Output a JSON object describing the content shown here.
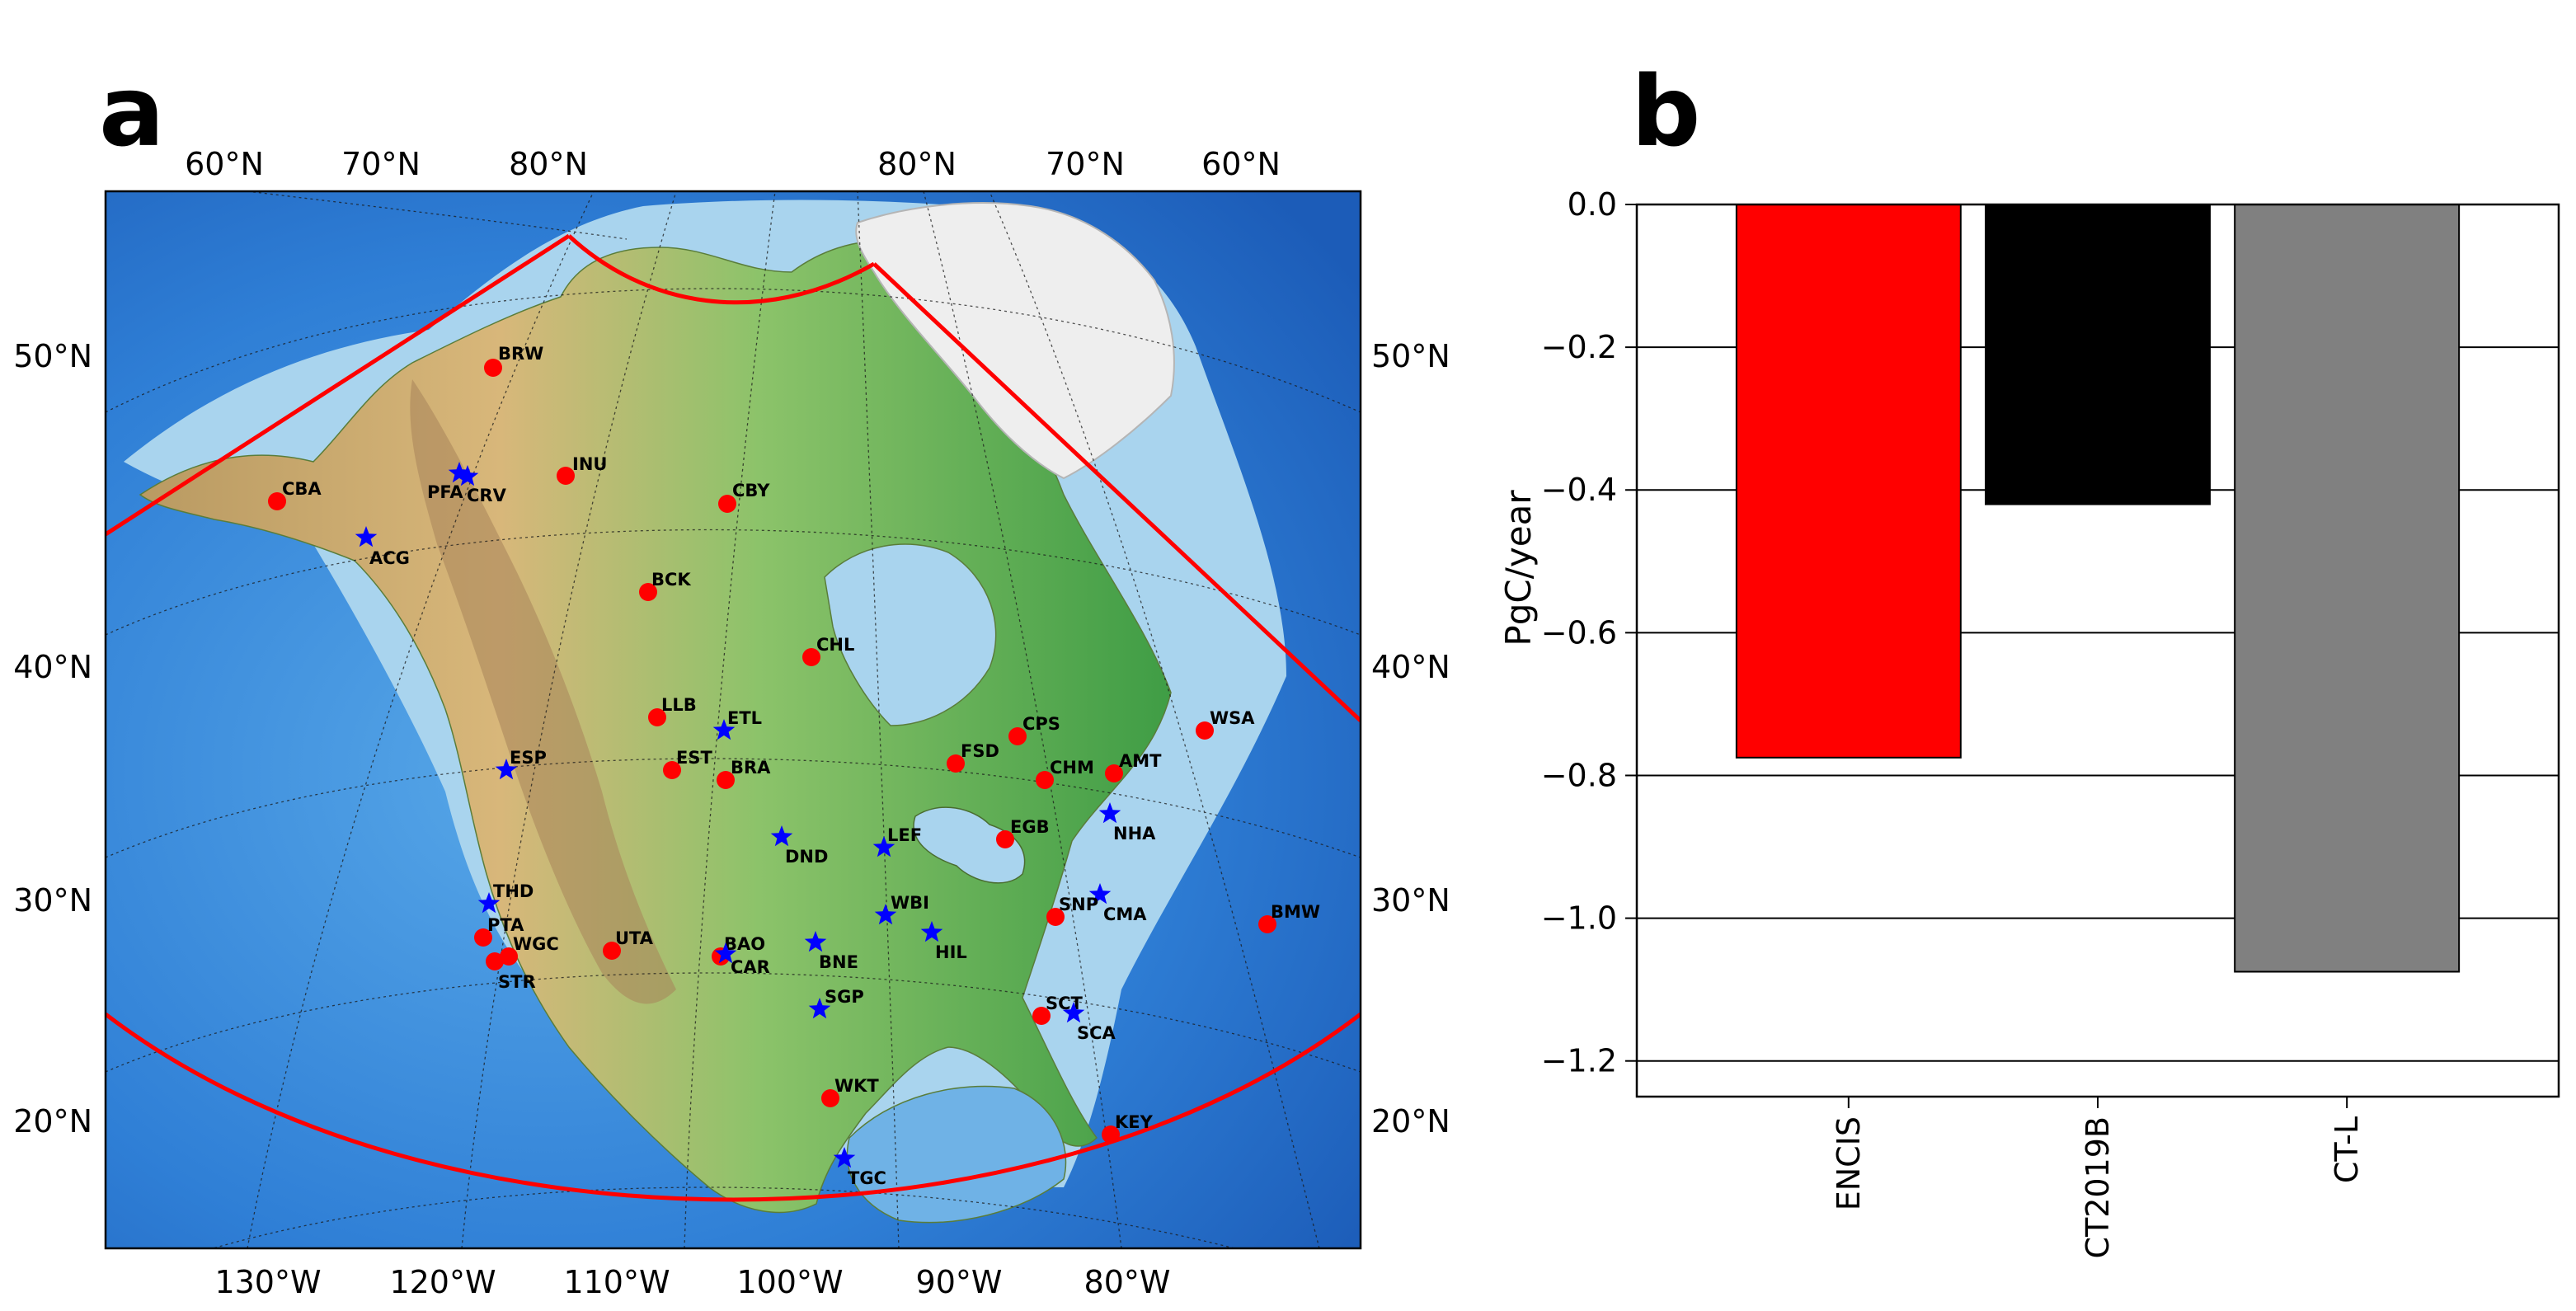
{
  "panel_a": {
    "letter": "a",
    "lat_labels_left": [
      {
        "text": "50°N",
        "lat": 50
      },
      {
        "text": "40°N",
        "lat": 40
      },
      {
        "text": "30°N",
        "lat": 30
      },
      {
        "text": "20°N",
        "lat": 20
      }
    ],
    "lat_labels_right": [
      {
        "text": "50°N",
        "lat": 50
      },
      {
        "text": "40°N",
        "lat": 40
      },
      {
        "text": "30°N",
        "lat": 30
      },
      {
        "text": "20°N",
        "lat": 20
      }
    ],
    "top_labels": [
      "60°N",
      "70°N",
      "80°N",
      "80°N",
      "70°N",
      "60°N"
    ],
    "lon_labels_bottom": [
      {
        "text": "130°W",
        "lon": -130
      },
      {
        "text": "120°W",
        "lon": -120
      },
      {
        "text": "110°W",
        "lon": -110
      },
      {
        "text": "100°W",
        "lon": -100
      },
      {
        "text": "90°W",
        "lon": -90
      },
      {
        "text": "80°W",
        "lon": -80
      }
    ],
    "marker_colors": {
      "tower": "#ff0000",
      "aircraft": "#0000ff"
    },
    "domain_color": "#ff0000",
    "sites": [
      {
        "code": "BRW",
        "type": "tower"
      },
      {
        "code": "INU",
        "type": "tower"
      },
      {
        "code": "CBY",
        "type": "tower"
      },
      {
        "code": "CBA",
        "type": "tower"
      },
      {
        "code": "PFA",
        "type": "aircraft"
      },
      {
        "code": "CRV",
        "type": "aircraft"
      },
      {
        "code": "ACG",
        "type": "aircraft"
      },
      {
        "code": "BCK",
        "type": "tower"
      },
      {
        "code": "CHL",
        "type": "tower"
      },
      {
        "code": "LLB",
        "type": "tower"
      },
      {
        "code": "ETL",
        "type": "aircraft"
      },
      {
        "code": "ESP",
        "type": "aircraft"
      },
      {
        "code": "EST",
        "type": "tower"
      },
      {
        "code": "BRA",
        "type": "tower"
      },
      {
        "code": "CPS",
        "type": "tower"
      },
      {
        "code": "FSD",
        "type": "tower"
      },
      {
        "code": "CHM",
        "type": "tower"
      },
      {
        "code": "AMT",
        "type": "tower"
      },
      {
        "code": "WSA",
        "type": "tower"
      },
      {
        "code": "NHA",
        "type": "aircraft"
      },
      {
        "code": "DND",
        "type": "aircraft"
      },
      {
        "code": "LEF",
        "type": "aircraft"
      },
      {
        "code": "EGB",
        "type": "tower"
      },
      {
        "code": "THD",
        "type": "aircraft"
      },
      {
        "code": "CMA",
        "type": "aircraft"
      },
      {
        "code": "SNP",
        "type": "tower"
      },
      {
        "code": "BMW",
        "type": "tower"
      },
      {
        "code": "WBI",
        "type": "aircraft"
      },
      {
        "code": "HIL",
        "type": "aircraft"
      },
      {
        "code": "PTA",
        "type": "tower"
      },
      {
        "code": "WGC",
        "type": "tower"
      },
      {
        "code": "STR",
        "type": "tower"
      },
      {
        "code": "UTA",
        "type": "tower"
      },
      {
        "code": "BAO",
        "type": "tower"
      },
      {
        "code": "CAR",
        "type": "aircraft"
      },
      {
        "code": "BNE",
        "type": "aircraft"
      },
      {
        "code": "SGP",
        "type": "aircraft"
      },
      {
        "code": "SCT",
        "type": "tower"
      },
      {
        "code": "SCA",
        "type": "aircraft"
      },
      {
        "code": "WKT",
        "type": "tower"
      },
      {
        "code": "KEY",
        "type": "tower"
      },
      {
        "code": "TGC",
        "type": "aircraft"
      }
    ]
  },
  "panel_b": {
    "letter": "b",
    "chart_data": {
      "type": "bar",
      "categories": [
        "ENCIS",
        "CT2019B",
        "CT-L"
      ],
      "values": [
        -0.775,
        -0.42,
        -1.075
      ],
      "colors": [
        "#ff0000",
        "#000000",
        "#808080"
      ],
      "title": "",
      "xlabel": "",
      "ylabel": "PgC/year",
      "ylim": [
        -1.25,
        0.0
      ],
      "yticks": [
        0.0,
        -0.2,
        -0.4,
        -0.6,
        -0.8,
        -1.0,
        -1.2
      ],
      "ytick_labels": [
        "0.0",
        "−0.2",
        "−0.4",
        "−0.6",
        "−0.8",
        "−1.0",
        "−1.2"
      ],
      "grid": "horizontal",
      "legend": "none"
    }
  }
}
